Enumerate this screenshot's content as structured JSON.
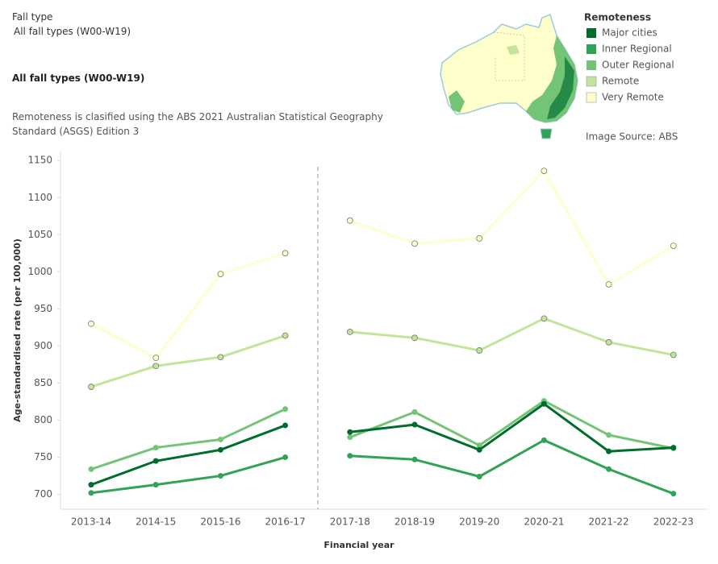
{
  "chart_data": {
    "type": "line",
    "filter_label": "Fall type",
    "filter_value": "All fall types (W00-W19)",
    "title": "All fall types (W00-W19)",
    "note": "Remoteness is clasified using the ABS 2021 Australian Statistical Geography Standard (ASGS) Edition 3",
    "legend_title": "Remoteness",
    "image_source": "Image Source: ABS",
    "x_label": "Financial year",
    "y_label": "Age-standardised rate (per 100,000)",
    "categories": [
      "2013-14",
      "2014-15",
      "2015-16",
      "2016-17",
      "2017-18",
      "2018-19",
      "2019-20",
      "2020-21",
      "2021-22",
      "2022-23"
    ],
    "series": [
      {
        "name": "Major cities",
        "color": "#006d2c",
        "values": [
          713,
          745,
          760,
          793,
          784,
          794,
          760,
          822,
          758,
          763
        ]
      },
      {
        "name": "Inner Regional",
        "color": "#31a354",
        "values": [
          702,
          713,
          725,
          750,
          752,
          747,
          724,
          773,
          734,
          701
        ]
      },
      {
        "name": "Outer Regional",
        "color": "#74c476",
        "values": [
          734,
          763,
          774,
          815,
          777,
          811,
          766,
          826,
          780,
          762
        ]
      },
      {
        "name": "Remote",
        "color": "#c2e699",
        "values": [
          845,
          873,
          885,
          914,
          919,
          911,
          894,
          937,
          905,
          888
        ]
      },
      {
        "name": "Very Remote",
        "color": "#ffffcc",
        "values": [
          930,
          884,
          997,
          1025,
          1069,
          1038,
          1045,
          1136,
          983,
          1035
        ]
      }
    ],
    "ylim": [
      680,
      1160
    ],
    "yticks": [
      700,
      750,
      800,
      850,
      900,
      950,
      1000,
      1050,
      1100,
      1150
    ],
    "grid": false
  }
}
